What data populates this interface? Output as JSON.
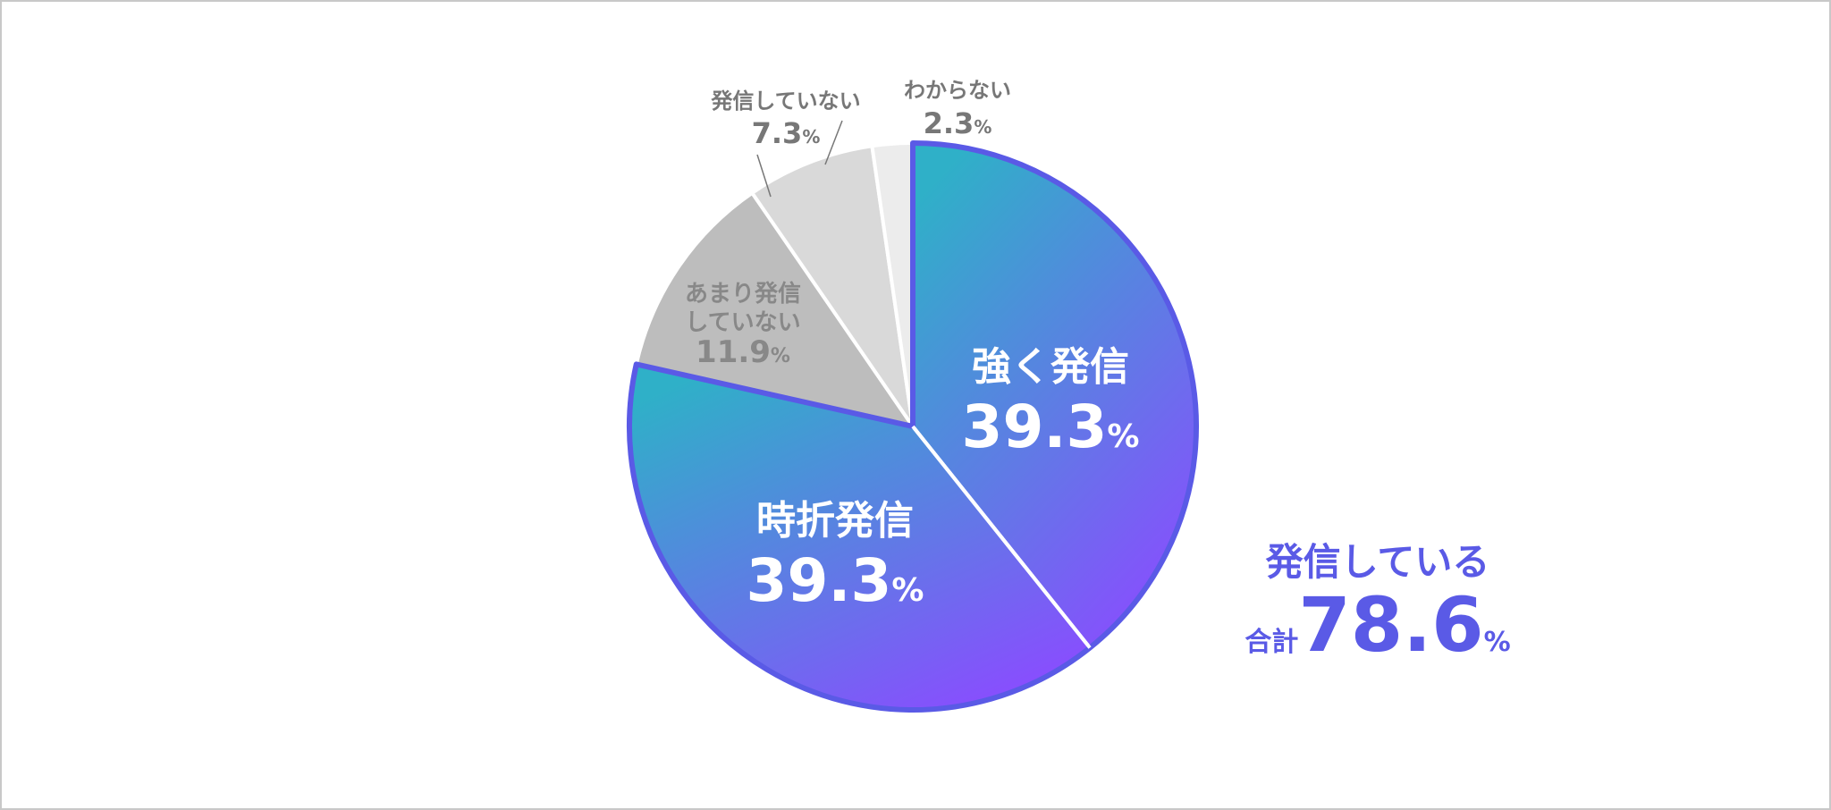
{
  "chart_data": {
    "type": "pie",
    "start": "top",
    "direction": "clockwise",
    "slices": [
      {
        "label": "強く発信",
        "value": 39.3,
        "value_text": "39.3",
        "color": "#3aa9d0",
        "highlight": true
      },
      {
        "label": "時折発信",
        "value": 39.3,
        "value_text": "39.3",
        "color": "#5b7ee8",
        "highlight": true
      },
      {
        "label_lines": [
          "あまり発信",
          "していない"
        ],
        "value": 11.9,
        "value_text": "11.9",
        "color": "#bdbdbd",
        "highlight": false
      },
      {
        "label": "発信していない",
        "value": 7.3,
        "value_text": "7.3",
        "color": "#d9d9d9",
        "highlight": false
      },
      {
        "label": "わからない",
        "value": 2.3,
        "value_text": "2.3",
        "color": "#ececec",
        "highlight": false
      }
    ],
    "unit": "%",
    "gradient": [
      "#2fb0c8",
      "#8a4cff"
    ],
    "highlight_border": "#5a5ae6",
    "annotation": {
      "title": "発信している",
      "prefix": "合計",
      "value": "78.6",
      "unit": "%",
      "color": "#5a5ae6"
    }
  }
}
